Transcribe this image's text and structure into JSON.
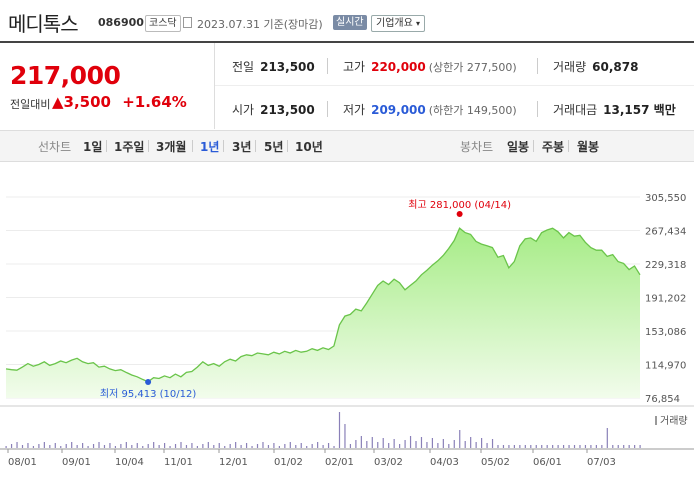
{
  "header": {
    "name": "메디톡스",
    "code": "086900",
    "market": "코스닥",
    "date": "2023.07.31",
    "basis": "기준(장마감)",
    "live": "실시간",
    "info": "기업개요"
  },
  "quote": {
    "price": "217,000",
    "change_label": "전일대비",
    "change": "▲3,500",
    "change_pct": "+1.64%"
  },
  "table": {
    "prev_label": "전일",
    "prev": "213,500",
    "high_label": "고가",
    "high": "220,000",
    "upper_limit": "(상한가 277,500)",
    "vol_label": "거래량",
    "vol": "60,878",
    "open_label": "시가",
    "open": "213,500",
    "low_label": "저가",
    "low": "209,000",
    "lower_limit": "(하한가 149,500)",
    "amt_label": "거래대금",
    "amt": "13,157 백만"
  },
  "tabs": {
    "line": "선차트",
    "periods": [
      "1일",
      "1주일",
      "3개월",
      "1년",
      "3년",
      "5년",
      "10년"
    ],
    "candle": "봉차트",
    "candle_periods": [
      "일봉",
      "주봉",
      "월봉"
    ]
  },
  "colors": {
    "up": "#e0000b",
    "down": "#2a5bd7",
    "area_top": "#8fe070",
    "line": "#6ac44a"
  },
  "chart_data": {
    "type": "area",
    "y_ticks": [
      "305,550",
      "267,434",
      "229,318",
      "191,202",
      "153,086",
      "114,970",
      "76,854"
    ],
    "ylim": [
      76854,
      305550
    ],
    "x_labels": [
      "08/01",
      "09/01",
      "10/04",
      "11/01",
      "12/01",
      "01/02",
      "02/01",
      "03/02",
      "04/03",
      "05/02",
      "06/01",
      "07/03"
    ],
    "max_label": "최고 281,000 (04/14)",
    "min_label": "최저 95,413 (10/12)",
    "volume_label": "거래량",
    "values": [
      110000,
      109000,
      108500,
      112000,
      116000,
      113000,
      115000,
      118000,
      114000,
      116000,
      119000,
      117000,
      120000,
      122000,
      118000,
      116000,
      117000,
      112000,
      113000,
      110000,
      108000,
      109000,
      106000,
      103000,
      101000,
      98000,
      95413,
      100000,
      99000,
      102000,
      100000,
      104000,
      101000,
      106000,
      107000,
      112000,
      118000,
      114000,
      116000,
      113000,
      118000,
      121000,
      119000,
      124000,
      126000,
      125000,
      128000,
      127000,
      126000,
      129000,
      127000,
      130000,
      128000,
      131000,
      129000,
      130000,
      133000,
      131000,
      134000,
      132000,
      136000,
      160000,
      170000,
      172000,
      178000,
      176000,
      185000,
      195000,
      205000,
      210000,
      206000,
      212000,
      208000,
      200000,
      205000,
      210000,
      217000,
      222000,
      228000,
      233000,
      239000,
      247000,
      256000,
      270000,
      265000,
      263000,
      255000,
      252000,
      250000,
      248000,
      237000,
      239000,
      225000,
      232000,
      250000,
      258000,
      259000,
      255000,
      265000,
      268000,
      270000,
      266000,
      259000,
      265000,
      261000,
      262000,
      254000,
      248000,
      245000,
      245000,
      238000,
      240000,
      232000,
      230000,
      223000,
      227000,
      217000
    ]
  }
}
